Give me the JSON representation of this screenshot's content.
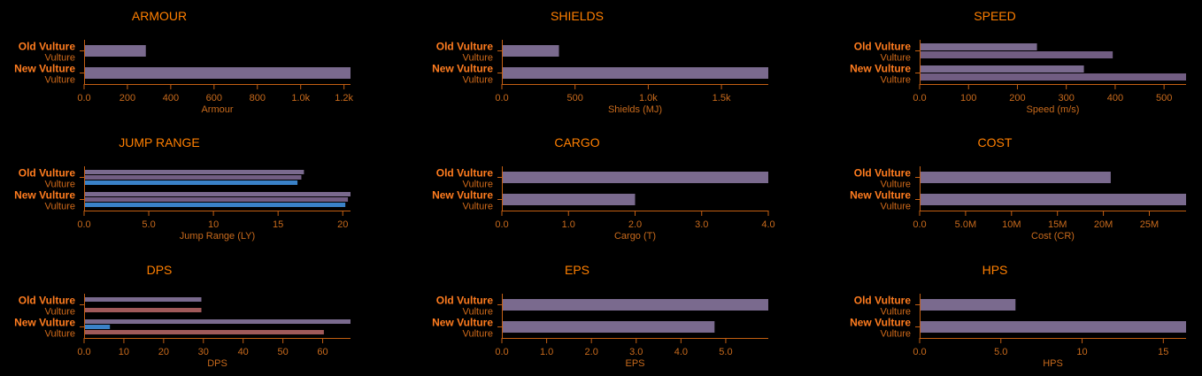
{
  "colors": {
    "background": "#000000",
    "accent": "#ff7f00",
    "axis": "#c45f12",
    "tick_text": "#c86a1c",
    "old_label": "#ff7c1f",
    "sub_label": "#d06a1a",
    "bar_main": "#7a6a8e",
    "bar_alt": "#715d82",
    "bar_red": "#a15a5a",
    "bar_blue": "#3a82c8"
  },
  "chart_data": [
    {
      "type": "bar",
      "title": "ARMOUR",
      "xlabel": "Armour",
      "categories": [
        {
          "line1": "Old Vulture",
          "line2": "Vulture"
        },
        {
          "line1": "New Vulture",
          "line2": "Vulture"
        }
      ],
      "ticks": [
        "0.0",
        "200",
        "400",
        "600",
        "800",
        "1.0k",
        "1.2k"
      ],
      "tick_values": [
        0,
        200,
        400,
        600,
        800,
        1000,
        1200
      ],
      "xlim": [
        0,
        1230
      ],
      "series": [
        {
          "values": [
            285,
            1230
          ],
          "color": "#7a6a8e"
        }
      ]
    },
    {
      "type": "bar",
      "title": "SHIELDS",
      "xlabel": "Shields (MJ)",
      "categories": [
        {
          "line1": "Old Vulture",
          "line2": "Vulture"
        },
        {
          "line1": "New Vulture",
          "line2": "Vulture"
        }
      ],
      "ticks": [
        "0.0",
        "500",
        "1.0k",
        "1.5k"
      ],
      "tick_values": [
        0,
        500,
        1000,
        1500
      ],
      "xlim": [
        0,
        1820
      ],
      "series": [
        {
          "values": [
            390,
            1820
          ],
          "color": "#7a6a8e"
        }
      ]
    },
    {
      "type": "bar",
      "title": "SPEED",
      "xlabel": "Speed (m/s)",
      "categories": [
        {
          "line1": "Old Vulture",
          "line2": "Vulture"
        },
        {
          "line1": "New Vulture",
          "line2": "Vulture"
        }
      ],
      "ticks": [
        "0.0",
        "100",
        "200",
        "300",
        "400",
        "500"
      ],
      "tick_values": [
        0,
        100,
        200,
        300,
        400,
        500
      ],
      "xlim": [
        0,
        545
      ],
      "series": [
        {
          "values": [
            240,
            336
          ],
          "color": "#7a6a8e"
        },
        {
          "values": [
            395,
            545
          ],
          "color": "#715d82"
        }
      ]
    },
    {
      "type": "bar",
      "title": "JUMP RANGE",
      "xlabel": "Jump Range (LY)",
      "categories": [
        {
          "line1": "Old Vulture",
          "line2": "Vulture"
        },
        {
          "line1": "New Vulture",
          "line2": "Vulture"
        }
      ],
      "ticks": [
        "0.0",
        "5.0",
        "10",
        "15",
        "20"
      ],
      "tick_values": [
        0,
        5,
        10,
        15,
        20
      ],
      "xlim": [
        0,
        20.6
      ],
      "series": [
        {
          "values": [
            17.0,
            20.6
          ],
          "color": "#7a6a8e"
        },
        {
          "values": [
            16.8,
            20.4
          ],
          "color": "#715d82"
        },
        {
          "values": [
            16.5,
            20.2
          ],
          "color": "#3a82c8"
        }
      ]
    },
    {
      "type": "bar",
      "title": "CARGO",
      "xlabel": "Cargo (T)",
      "categories": [
        {
          "line1": "Old Vulture",
          "line2": "Vulture"
        },
        {
          "line1": "New Vulture",
          "line2": "Vulture"
        }
      ],
      "ticks": [
        "0.0",
        "1.0",
        "2.0",
        "3.0",
        "4.0"
      ],
      "tick_values": [
        0,
        1,
        2,
        3,
        4
      ],
      "xlim": [
        0,
        4
      ],
      "series": [
        {
          "values": [
            4,
            2
          ],
          "color": "#7a6a8e"
        }
      ]
    },
    {
      "type": "bar",
      "title": "COST",
      "xlabel": "Cost (CR)",
      "categories": [
        {
          "line1": "Old Vulture",
          "line2": "Vulture"
        },
        {
          "line1": "New Vulture",
          "line2": "Vulture"
        }
      ],
      "ticks": [
        "0.0",
        "5.0M",
        "10M",
        "15M",
        "20M",
        "25M"
      ],
      "tick_values": [
        0,
        5000000,
        10000000,
        15000000,
        20000000,
        25000000
      ],
      "xlim": [
        0,
        29000000
      ],
      "series": [
        {
          "values": [
            20800000,
            29000000
          ],
          "color": "#7a6a8e"
        }
      ]
    },
    {
      "type": "bar",
      "title": "DPS",
      "xlabel": "DPS",
      "categories": [
        {
          "line1": "Old Vulture",
          "line2": "Vulture"
        },
        {
          "line1": "New Vulture",
          "line2": "Vulture"
        }
      ],
      "ticks": [
        "0.0",
        "10",
        "20",
        "30",
        "40",
        "50",
        "60"
      ],
      "tick_values": [
        0,
        10,
        20,
        30,
        40,
        50,
        60
      ],
      "xlim": [
        0,
        67
      ],
      "series": [
        {
          "values": [
            29.5,
            67
          ],
          "color": "#7a6a8e"
        },
        {
          "values": [
            0,
            6.5
          ],
          "color": "#3a82c8"
        },
        {
          "values": [
            29.5,
            60.3
          ],
          "color": "#a15a5a"
        }
      ]
    },
    {
      "type": "bar",
      "title": "EPS",
      "xlabel": "EPS",
      "categories": [
        {
          "line1": "Old Vulture",
          "line2": "Vulture"
        },
        {
          "line1": "New Vulture",
          "line2": "Vulture"
        }
      ],
      "ticks": [
        "0.0",
        "1.0",
        "2.0",
        "3.0",
        "4.0",
        "5.0"
      ],
      "tick_values": [
        0,
        1,
        2,
        3,
        4,
        5
      ],
      "xlim": [
        0,
        5.95
      ],
      "series": [
        {
          "values": [
            5.95,
            4.75
          ],
          "color": "#7a6a8e"
        }
      ]
    },
    {
      "type": "bar",
      "title": "HPS",
      "xlabel": "HPS",
      "categories": [
        {
          "line1": "Old Vulture",
          "line2": "Vulture"
        },
        {
          "line1": "New Vulture",
          "line2": "Vulture"
        }
      ],
      "ticks": [
        "0.0",
        "5.0",
        "10",
        "15"
      ],
      "tick_values": [
        0,
        5,
        10,
        15
      ],
      "xlim": [
        0,
        16.4
      ],
      "series": [
        {
          "values": [
            5.9,
            16.4
          ],
          "color": "#7a6a8e"
        }
      ]
    }
  ]
}
